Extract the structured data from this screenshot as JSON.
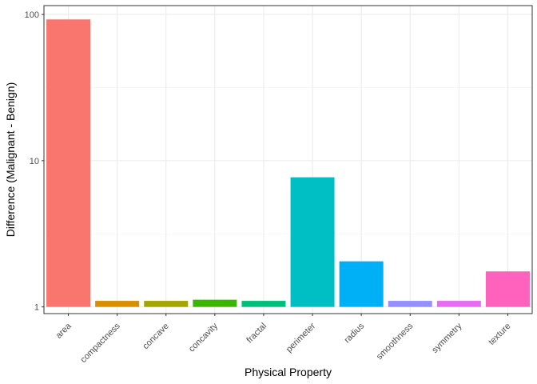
{
  "chart_data": {
    "type": "bar",
    "title": "",
    "xlabel": "Physical Property",
    "ylabel": "Difference (Malignant - Benign)",
    "y_scale": "log10",
    "ylim": [
      0.9,
      115
    ],
    "yticks": [
      {
        "value": 1,
        "label": "1"
      },
      {
        "value": 10,
        "label": "10"
      },
      {
        "value": 100,
        "label": "100"
      }
    ],
    "grid": true,
    "legend": "none",
    "categories": [
      "area",
      "compactness",
      "concave",
      "concavity",
      "fractal",
      "perimeter",
      "radius",
      "smoothness",
      "symmetry",
      "texture"
    ],
    "values": [
      92.5,
      1.1,
      1.1,
      1.12,
      1.1,
      7.7,
      2.05,
      1.1,
      1.1,
      1.75
    ],
    "colors": [
      "#F8766D",
      "#D89000",
      "#A3A500",
      "#39B600",
      "#00BF7D",
      "#00BFC4",
      "#00B0F6",
      "#9590FF",
      "#E76BF3",
      "#FF62BC"
    ]
  }
}
